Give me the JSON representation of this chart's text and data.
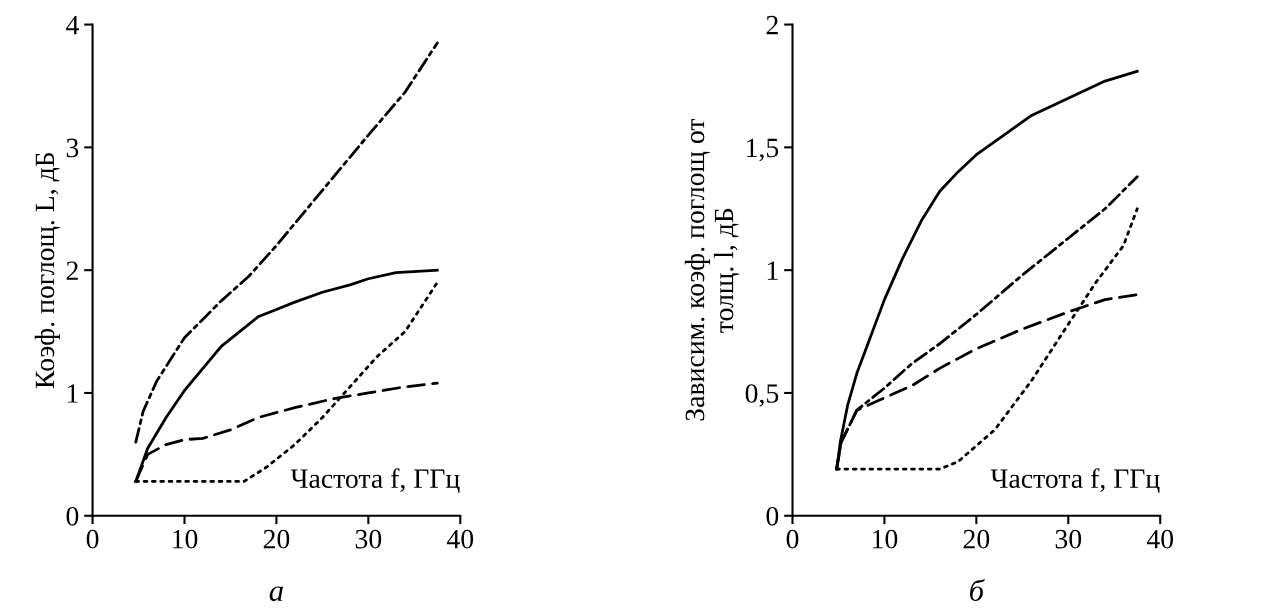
{
  "chart_data": [
    {
      "type": "line",
      "xlabel": "Частота f, ГГц",
      "ylabel": "Коэф. поглощ. L, дБ",
      "xlim": [
        0,
        40
      ],
      "xticks": [
        0,
        10,
        20,
        30,
        40
      ],
      "ylim": [
        0,
        4
      ],
      "yticks": [
        0,
        1,
        2,
        3,
        4
      ],
      "annotations": [
        "а"
      ],
      "series": [
        {
          "color": "#000000",
          "line_style": "solid",
          "x": [
            4.7,
            6,
            8,
            10,
            12,
            14,
            16,
            18,
            20,
            22,
            25,
            28,
            30,
            33,
            37.5
          ],
          "values": [
            0.28,
            0.55,
            0.8,
            1.02,
            1.2,
            1.38,
            1.5,
            1.62,
            1.68,
            1.74,
            1.82,
            1.88,
            1.93,
            1.98,
            2.0
          ]
        },
        {
          "color": "#000000",
          "line_style": "dashdot",
          "x": [
            4.7,
            5.5,
            7,
            10,
            14,
            17,
            20,
            25,
            30,
            34,
            37.5
          ],
          "values": [
            0.6,
            0.85,
            1.1,
            1.45,
            1.75,
            1.95,
            2.2,
            2.65,
            3.1,
            3.45,
            3.85
          ]
        },
        {
          "color": "#000000",
          "line_style": "dashed",
          "x": [
            4.7,
            6,
            8,
            10,
            12,
            15,
            18,
            22,
            26,
            30,
            34,
            37.5
          ],
          "values": [
            0.28,
            0.5,
            0.58,
            0.62,
            0.63,
            0.7,
            0.8,
            0.88,
            0.95,
            1.0,
            1.05,
            1.08
          ]
        },
        {
          "color": "#000000",
          "line_style": "dotted",
          "x": [
            4.7,
            10,
            16.5,
            19,
            22,
            25,
            28,
            31,
            34,
            37.5
          ],
          "values": [
            0.28,
            0.28,
            0.28,
            0.4,
            0.58,
            0.8,
            1.05,
            1.3,
            1.5,
            1.9
          ]
        }
      ]
    },
    {
      "type": "line",
      "xlabel": "Частота f, ГГц",
      "ylabel": "Зависим. коэф. поглощ от\nтолщ. l, дБ",
      "xlim": [
        0,
        40
      ],
      "xticks": [
        0,
        10,
        20,
        30,
        40
      ],
      "ylim": [
        0,
        2
      ],
      "yticks": [
        0,
        {
          "value": 0.5,
          "label": "0,5"
        },
        1,
        {
          "value": 1.5,
          "label": "1,5"
        },
        2
      ],
      "annotations": [
        "б"
      ],
      "series": [
        {
          "color": "#000000",
          "line_style": "solid",
          "x": [
            4.8,
            5.2,
            6,
            7,
            8,
            10,
            12,
            14,
            16,
            18,
            20,
            23,
            26,
            30,
            34,
            37.5
          ],
          "values": [
            0.19,
            0.3,
            0.45,
            0.58,
            0.68,
            0.88,
            1.05,
            1.2,
            1.32,
            1.4,
            1.47,
            1.55,
            1.63,
            1.7,
            1.77,
            1.81
          ]
        },
        {
          "color": "#000000",
          "line_style": "dashdot",
          "x": [
            4.8,
            5.3,
            7,
            10,
            13,
            16,
            20,
            25,
            30,
            34,
            37.5
          ],
          "values": [
            0.19,
            0.3,
            0.43,
            0.52,
            0.62,
            0.7,
            0.82,
            0.98,
            1.13,
            1.25,
            1.38
          ]
        },
        {
          "color": "#000000",
          "line_style": "dashed",
          "x": [
            4.8,
            5.3,
            7,
            10,
            13,
            16,
            20,
            25,
            30,
            34,
            37.5
          ],
          "values": [
            0.19,
            0.3,
            0.43,
            0.48,
            0.53,
            0.6,
            0.68,
            0.76,
            0.83,
            0.88,
            0.9
          ]
        },
        {
          "color": "#000000",
          "line_style": "dotted",
          "x": [
            4.8,
            10,
            16,
            18,
            22,
            26,
            30,
            33,
            36,
            37.5
          ],
          "values": [
            0.19,
            0.19,
            0.19,
            0.22,
            0.35,
            0.55,
            0.78,
            0.95,
            1.1,
            1.25
          ]
        }
      ]
    }
  ]
}
